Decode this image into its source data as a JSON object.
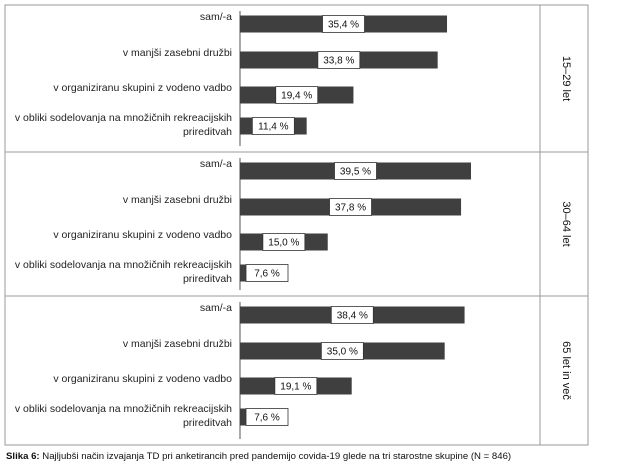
{
  "caption": {
    "label": "Slika 6:",
    "text": "Najljubši način izvajanja TD pri anketirancih pred pandemijo covida-19 glede na tri starostne skupine (N = 846)"
  },
  "chart_data": {
    "type": "bar",
    "orientation": "horizontal",
    "value_unit": "%",
    "xlim": [
      0,
      50
    ],
    "grid": false,
    "colors": {
      "bar": "#3f3f3f",
      "frame": "#9a9a9a",
      "label_box": "#ffffff"
    },
    "categories": [
      "sam/-a",
      "v manjši zasebni družbi",
      "v organiziranu skupini z vodeno vadbo",
      "v obliki sodelovanja na množičnih rekreacijskih prireditvah"
    ],
    "groups": [
      {
        "name": "15–29 let",
        "values": [
          35.4,
          33.8,
          19.4,
          11.4
        ],
        "value_labels": [
          "35,4 %",
          "33,8 %",
          "19,4 %",
          "11,4 %"
        ]
      },
      {
        "name": "30–64 let",
        "values": [
          39.5,
          37.8,
          15.0,
          7.6
        ],
        "value_labels": [
          "39,5 %",
          "37,8 %",
          "15,0 %",
          "7,6 %"
        ]
      },
      {
        "name": "65 let in več",
        "values": [
          38.4,
          35.0,
          19.1,
          7.6
        ],
        "value_labels": [
          "38,4 %",
          "35,0 %",
          "19,1 %",
          "7,6 %"
        ]
      }
    ]
  }
}
